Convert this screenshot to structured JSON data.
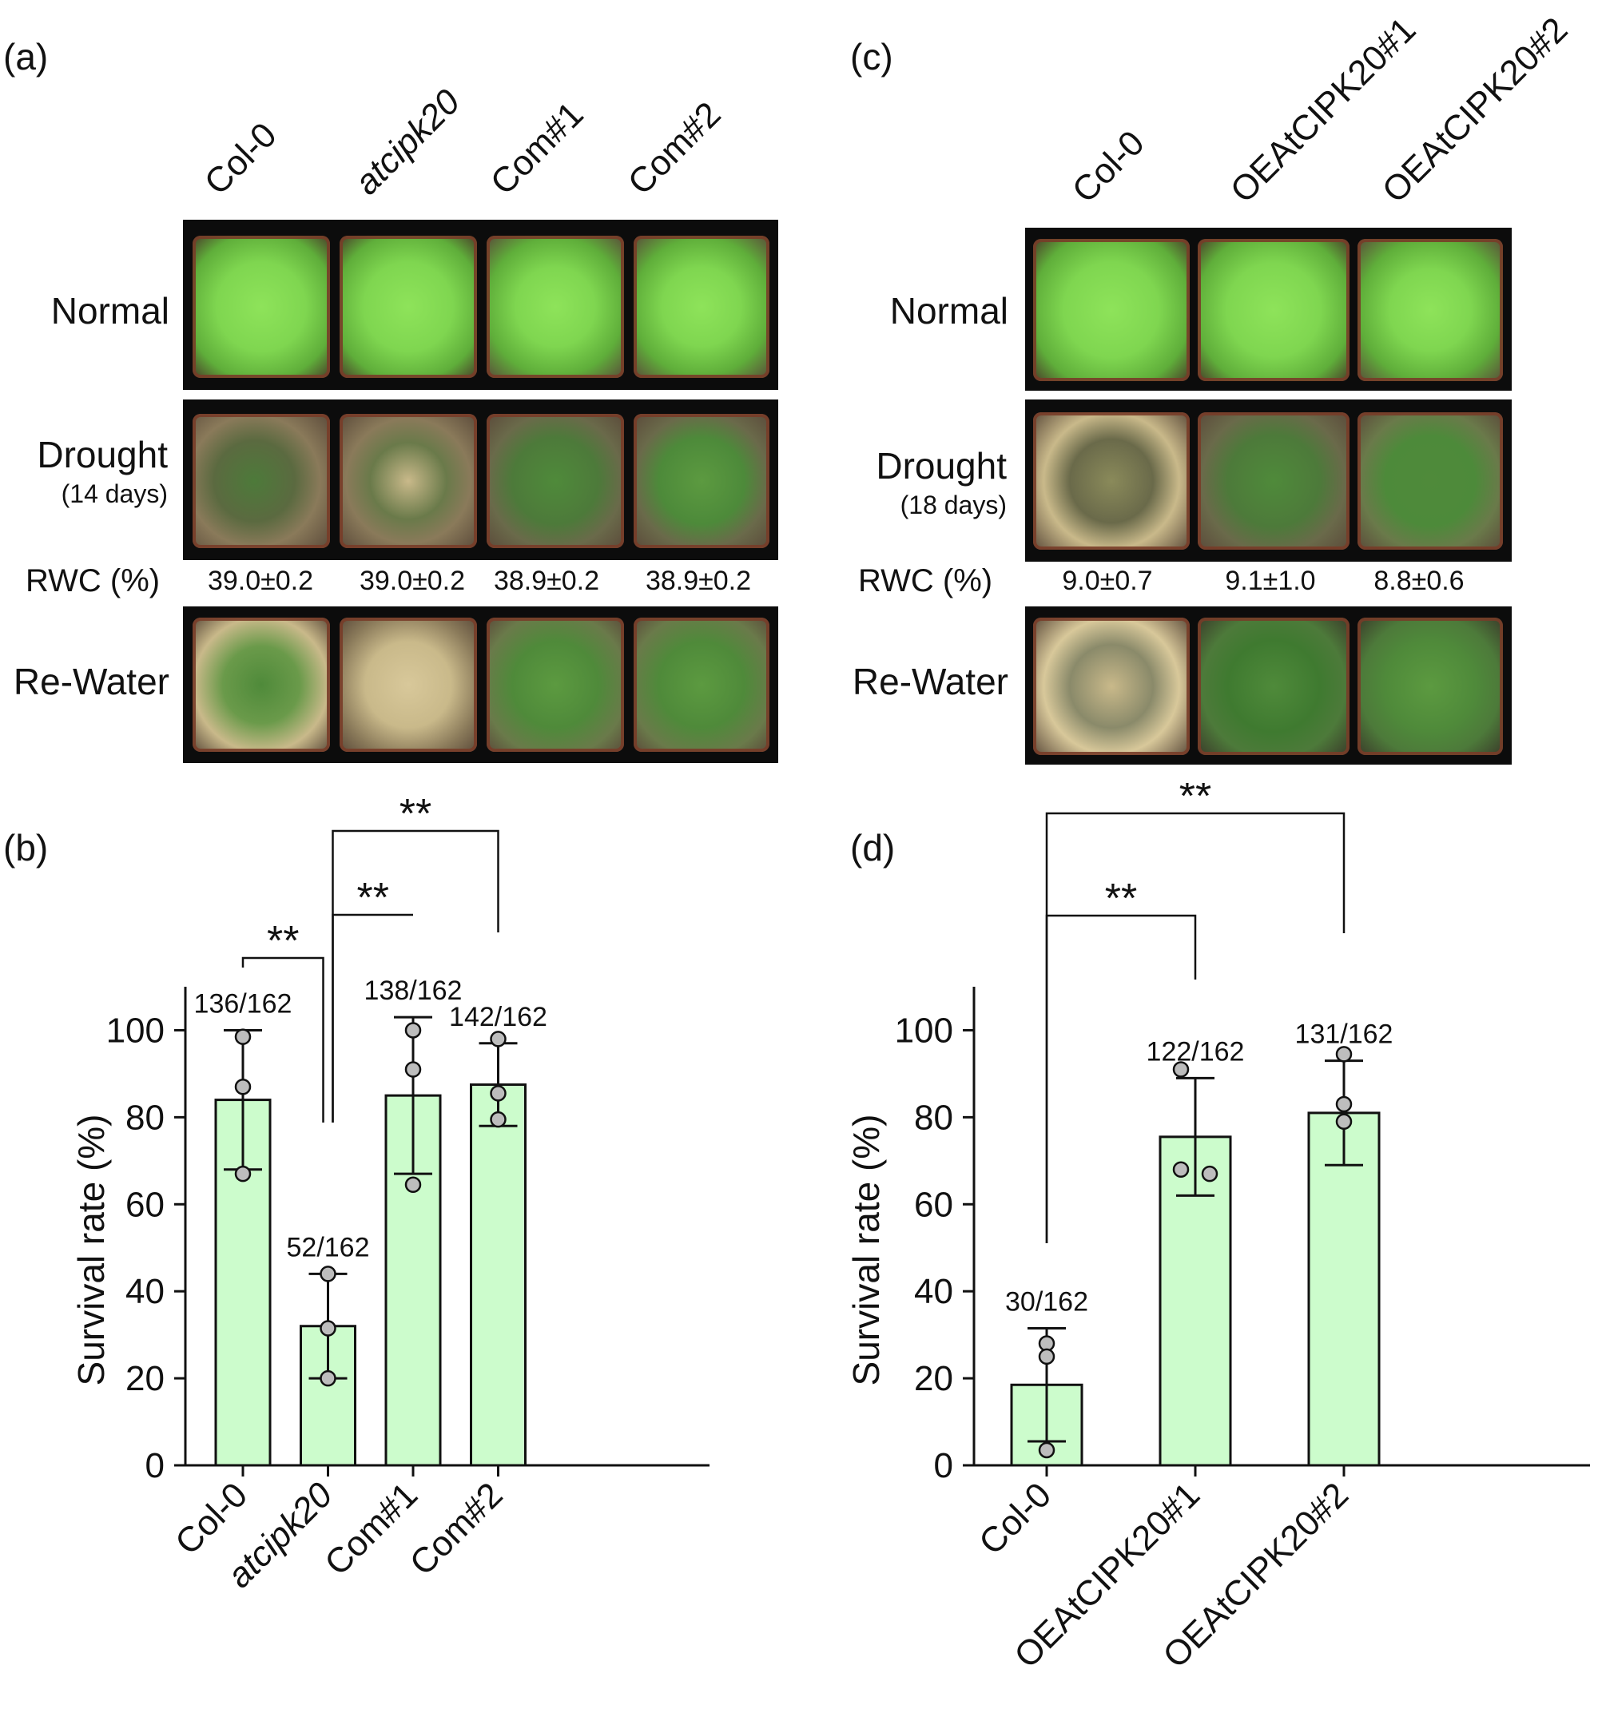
{
  "panels": {
    "a": "(a)",
    "b": "(b)",
    "c": "(c)",
    "d": "(d)"
  },
  "photo_a": {
    "genotypes": [
      "Col-0",
      "atcipk20",
      "Com#1",
      "Com#2"
    ],
    "rows": {
      "normal": "Normal",
      "drought": "Drought",
      "drought_days": "(14 days)",
      "rewater": "Re-Water"
    },
    "rwc_label": "RWC (%)",
    "rwc_values": [
      "39.0±0.2",
      "39.0±0.2",
      "38.9±0.2",
      "38.9±0.2"
    ]
  },
  "photo_c": {
    "genotypes": [
      "Col-0",
      "OEAtCIPK20#1",
      "OEAtCIPK20#2"
    ],
    "rows": {
      "normal": "Normal",
      "drought": "Drought",
      "drought_days": "(18 days)",
      "rewater": "Re-Water"
    },
    "rwc_label": "RWC (%)",
    "rwc_values": [
      "9.0±0.7",
      "9.1±1.0",
      "8.8±0.6"
    ]
  },
  "colors": {
    "bar_fill": "#ccfccc",
    "point_fill": "#bdbdbd",
    "axis": "#111111",
    "healthy_plant": "#7fd650",
    "drought_plant": "#4d7a3a",
    "dry_leaf": "#e8d6a0",
    "soil": "#5b4a3a",
    "pot": "#7a3b28"
  },
  "chart_data": [
    {
      "type": "bar",
      "panel": "(b)",
      "categories": [
        "Col-0",
        "atcipk20",
        "Com#1",
        "Com#2"
      ],
      "values": [
        84,
        32,
        85,
        87.5
      ],
      "error": [
        16,
        12,
        18,
        9.5
      ],
      "points": [
        [
          98.5,
          87,
          67
        ],
        [
          44,
          31.5,
          20
        ],
        [
          100,
          91,
          64.5
        ],
        [
          98,
          85.5,
          79.5
        ]
      ],
      "annotations": [
        "136/162",
        "52/162",
        "138/162",
        "142/162"
      ],
      "significance": [
        {
          "from": 0,
          "to": 1,
          "label": "**"
        },
        {
          "from": 1,
          "to": 2,
          "label": "**"
        },
        {
          "from": 1,
          "to": 3,
          "label": "**"
        }
      ],
      "ylabel": "Survival rate (%)",
      "ylim": [
        0,
        110
      ],
      "yticks": [
        0,
        20,
        40,
        60,
        80,
        100
      ]
    },
    {
      "type": "bar",
      "panel": "(d)",
      "categories": [
        "Col-0",
        "OEAtCIPK20#1",
        "OEAtCIPK20#2"
      ],
      "values": [
        18.5,
        75.5,
        81
      ],
      "error": [
        13,
        13.5,
        12
      ],
      "points": [
        [
          28,
          25,
          3.5
        ],
        [
          91,
          68,
          67
        ],
        [
          94.5,
          83,
          79
        ]
      ],
      "annotations": [
        "30/162",
        "122/162",
        "131/162"
      ],
      "significance": [
        {
          "from": 0,
          "to": 1,
          "label": "**"
        },
        {
          "from": 0,
          "to": 2,
          "label": "**"
        }
      ],
      "ylabel": "Survival rate (%)",
      "ylim": [
        0,
        110
      ],
      "yticks": [
        0,
        20,
        40,
        60,
        80,
        100
      ]
    }
  ]
}
